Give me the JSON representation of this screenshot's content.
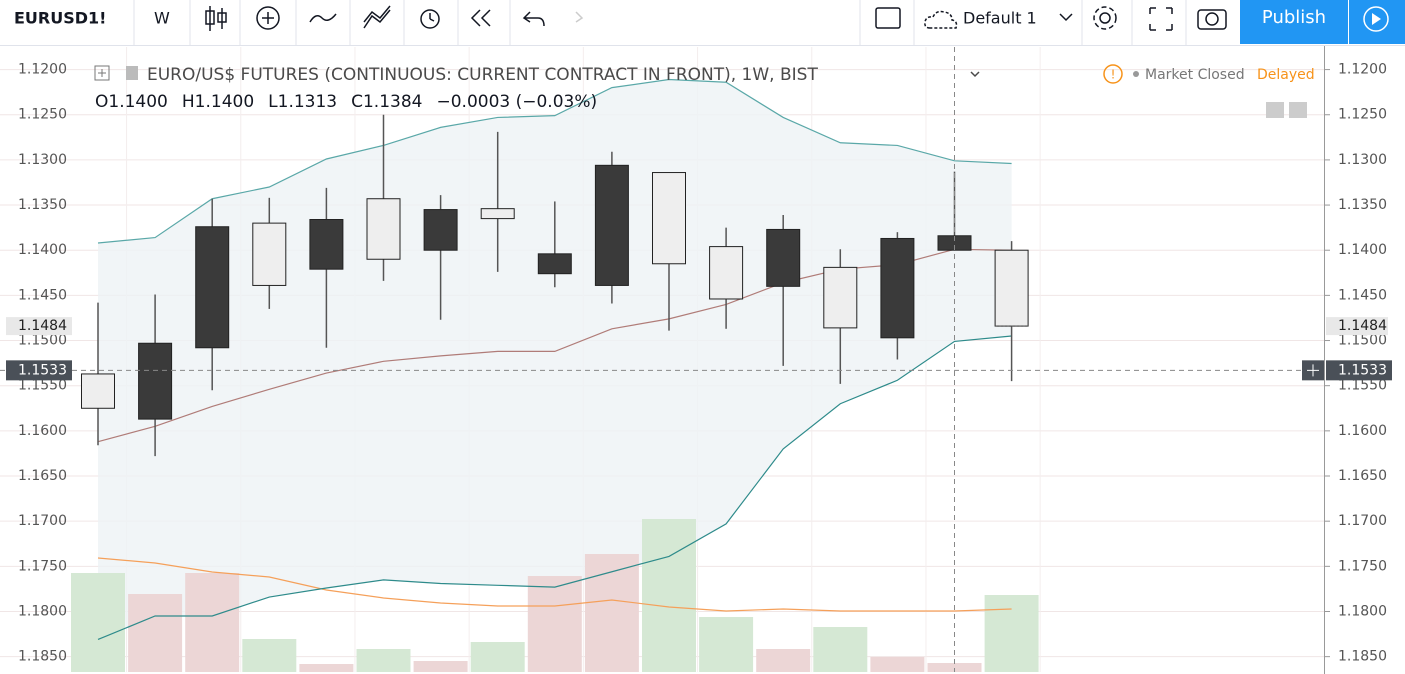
{
  "toolbar": {
    "symbol": "EURUSD1!",
    "interval": "W",
    "layout": "Default 1",
    "publish": "Publish"
  },
  "status": {
    "market": "Market Closed",
    "delayed": "Delayed"
  },
  "chart_data": {
    "type": "candlestick",
    "title": "EURO/US$ FUTURES (CONTINUOUS: CURRENT CONTRACT IN FRONT), 1W, BIST",
    "ohlc_legend": [
      "O1.1400",
      "H1.1400",
      "L1.1313",
      "C1.1384",
      "−0.0003 (−0.03%)"
    ],
    "ylim": [
      1.1867,
      1.1175
    ],
    "yticks": [
      {
        "value": 1.12,
        "label": "1.1200"
      },
      {
        "value": 1.125,
        "label": "1.1250"
      },
      {
        "value": 1.13,
        "label": "1.1300"
      },
      {
        "value": 1.135,
        "label": "1.1350"
      },
      {
        "value": 1.14,
        "label": "1.1400"
      },
      {
        "value": 1.145,
        "label": "1.1450"
      },
      {
        "value": 1.15,
        "label": "1.1500"
      },
      {
        "value": 1.155,
        "label": "1.1550"
      },
      {
        "value": 1.16,
        "label": "1.1600"
      },
      {
        "value": 1.165,
        "label": "1.1650"
      },
      {
        "value": 1.17,
        "label": "1.1700"
      },
      {
        "value": 1.175,
        "label": "1.1750"
      },
      {
        "value": 1.18,
        "label": "1.1800"
      },
      {
        "value": 1.185,
        "label": "1.1850"
      }
    ],
    "grid": true,
    "up_color": "#eeeeee",
    "down_color": "#3a3a3a",
    "open": [
      1.1537,
      1.1587,
      1.1508,
      1.137,
      1.1421,
      1.1343,
      1.14,
      1.1354,
      1.1426,
      1.1439,
      1.1314,
      1.1396,
      1.144,
      1.1419,
      1.1497,
      1.14,
      1.14
    ],
    "high": [
      1.1616,
      1.1628,
      1.1555,
      1.1465,
      1.1508,
      1.1434,
      1.1477,
      1.1424,
      1.1441,
      1.1459,
      1.1489,
      1.1487,
      1.1528,
      1.1548,
      1.1521,
      1.14,
      1.1545
    ],
    "low": [
      1.1458,
      1.1449,
      1.1343,
      1.1342,
      1.1331,
      1.125,
      1.1339,
      1.1269,
      1.1346,
      1.1291,
      1.1314,
      1.1375,
      1.1361,
      1.1399,
      1.138,
      1.1313,
      1.139
    ],
    "close": [
      1.1575,
      1.1503,
      1.1374,
      1.1439,
      1.1366,
      1.141,
      1.1355,
      1.1365,
      1.1404,
      1.1306,
      1.1415,
      1.1454,
      1.1377,
      1.1486,
      1.1387,
      1.1384,
      1.1484
    ],
    "bands": [
      {
        "color": "#5aa8a8",
        "values": [
          1.1392,
          1.1386,
          1.1343,
          1.133,
          1.1299,
          1.1284,
          1.1264,
          1.1253,
          1.1251,
          1.122,
          1.1211,
          1.1214,
          1.1253,
          1.1281,
          1.1284,
          1.1301,
          1.1304
        ]
      },
      {
        "color": "#b07c78",
        "values": [
          1.1612,
          1.1595,
          1.1573,
          1.1554,
          1.1536,
          1.1523,
          1.1517,
          1.1512,
          1.1512,
          1.1487,
          1.1476,
          1.146,
          1.1436,
          1.1421,
          1.1416,
          1.1399,
          1.14
        ]
      },
      {
        "color": "#2e8b8b",
        "values": [
          1.1831,
          1.1805,
          1.1805,
          1.1784,
          1.1774,
          1.1765,
          1.1769,
          1.1771,
          1.1773,
          1.1756,
          1.1739,
          1.1703,
          1.162,
          1.157,
          1.1544,
          1.1501,
          1.1495
        ]
      }
    ],
    "band_fill": "#eef3f5",
    "volume": {
      "vlim": [
        0,
        625
      ],
      "values": [
        99,
        78,
        99,
        33,
        8,
        23,
        11,
        30,
        96,
        118,
        153,
        55,
        23,
        45,
        15,
        9,
        77
      ],
      "up_color": "#d5e8d4",
      "down_color": "#ecd6d6",
      "ma": [
        114,
        109,
        100,
        95,
        82,
        74,
        69,
        66,
        66,
        72,
        65,
        61,
        63,
        61,
        61,
        61,
        63
      ],
      "ma_color": "#f5a05a"
    },
    "last_price": {
      "value": 1.1484,
      "label": "1.1484"
    },
    "crosshair": {
      "index": 15,
      "value": 1.1533,
      "label": "1.1533"
    }
  }
}
